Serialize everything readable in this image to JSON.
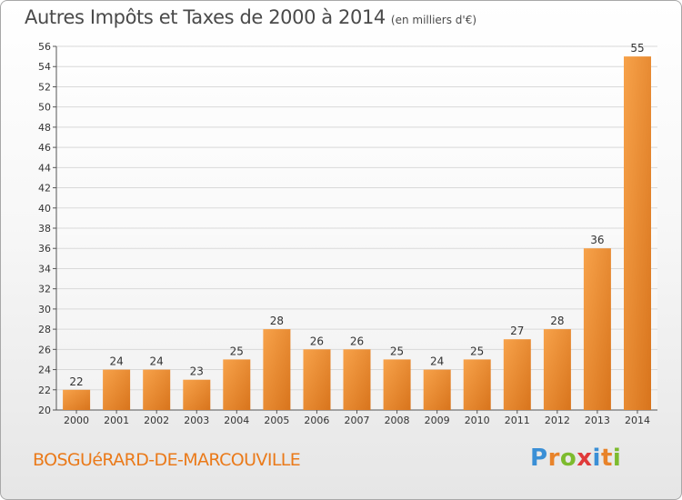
{
  "title": "Autres Impôts et Taxes de 2000 à 2014",
  "subtitle": "(en milliers d'€)",
  "location": "BOSGUéRARD-DE-MARCOUVILLE",
  "logo": {
    "letters": [
      "P",
      "r",
      "o",
      "x",
      "i",
      "t",
      "i"
    ],
    "colors": [
      "#3a8fd6",
      "#e8832a",
      "#7dbb2e",
      "#e03a3a",
      "#3a8fd6",
      "#e8832a",
      "#7dbb2e"
    ]
  },
  "colors": {
    "bar_light": "#f7a24a",
    "bar_dark": "#d8741c",
    "grid": "#d9d9d9",
    "axis": "#555555"
  },
  "chart_data": {
    "type": "bar",
    "title": "Autres Impôts et Taxes de 2000 à 2014",
    "subtitle": "(en milliers d'€)",
    "xlabel": "",
    "ylabel": "",
    "categories": [
      "2000",
      "2001",
      "2002",
      "2003",
      "2004",
      "2005",
      "2006",
      "2007",
      "2008",
      "2009",
      "2010",
      "2011",
      "2012",
      "2013",
      "2014"
    ],
    "values": [
      22,
      24,
      24,
      23,
      25,
      28,
      26,
      26,
      25,
      24,
      25,
      27,
      28,
      36,
      55
    ],
    "ylim": [
      20,
      56
    ],
    "yticks": [
      20,
      22,
      24,
      26,
      28,
      30,
      32,
      34,
      36,
      38,
      40,
      42,
      44,
      46,
      48,
      50,
      52,
      54,
      56
    ],
    "grid": true,
    "data_labels": true
  }
}
